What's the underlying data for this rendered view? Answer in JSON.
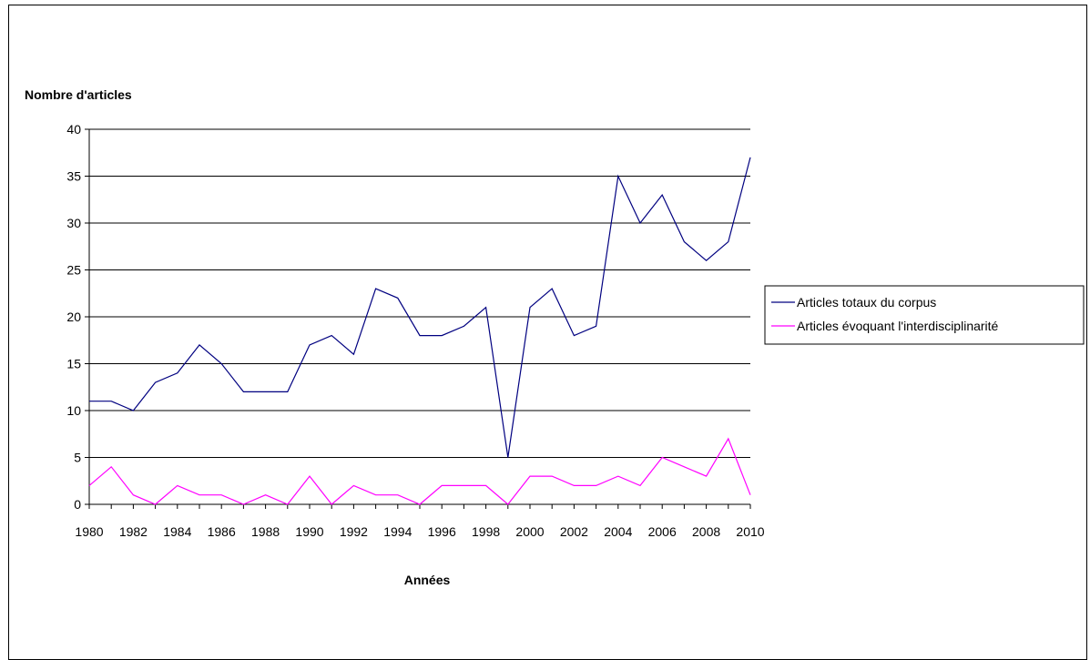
{
  "chart_data": {
    "type": "line",
    "title": "",
    "ylabel": "Nombre d'articles",
    "xlabel": "Années",
    "ylim": [
      0,
      40
    ],
    "yticks": [
      "0",
      "5",
      "10",
      "15",
      "20",
      "25",
      "30",
      "35",
      "40"
    ],
    "xlim": [
      1980,
      2010
    ],
    "xticks": [
      "1980",
      "1982",
      "1984",
      "1986",
      "1988",
      "1990",
      "1992",
      "1994",
      "1996",
      "1998",
      "2000",
      "2002",
      "2004",
      "2006",
      "2008",
      "2010"
    ],
    "grid": "horizontal",
    "legend_position": "right",
    "x": [
      1980,
      1981,
      1982,
      1983,
      1984,
      1985,
      1986,
      1987,
      1988,
      1989,
      1990,
      1991,
      1992,
      1993,
      1994,
      1995,
      1996,
      1997,
      1998,
      1999,
      2000,
      2001,
      2002,
      2003,
      2004,
      2005,
      2006,
      2007,
      2008,
      2009,
      2010
    ],
    "series": [
      {
        "name": "Articles totaux du corpus",
        "color": "#000080",
        "values": [
          11,
          11,
          10,
          13,
          14,
          17,
          15,
          12,
          12,
          12,
          17,
          18,
          16,
          23,
          22,
          18,
          18,
          19,
          21,
          5,
          21,
          23,
          18,
          19,
          35,
          30,
          33,
          28,
          26,
          28,
          37
        ]
      },
      {
        "name": "Articles évoquant l'interdisciplinarité",
        "color": "#FF00FF",
        "values": [
          2,
          4,
          1,
          0,
          2,
          1,
          1,
          0,
          1,
          0,
          3,
          0,
          2,
          1,
          1,
          0,
          2,
          2,
          2,
          0,
          3,
          3,
          2,
          2,
          3,
          2,
          5,
          4,
          3,
          7,
          1
        ]
      }
    ]
  }
}
